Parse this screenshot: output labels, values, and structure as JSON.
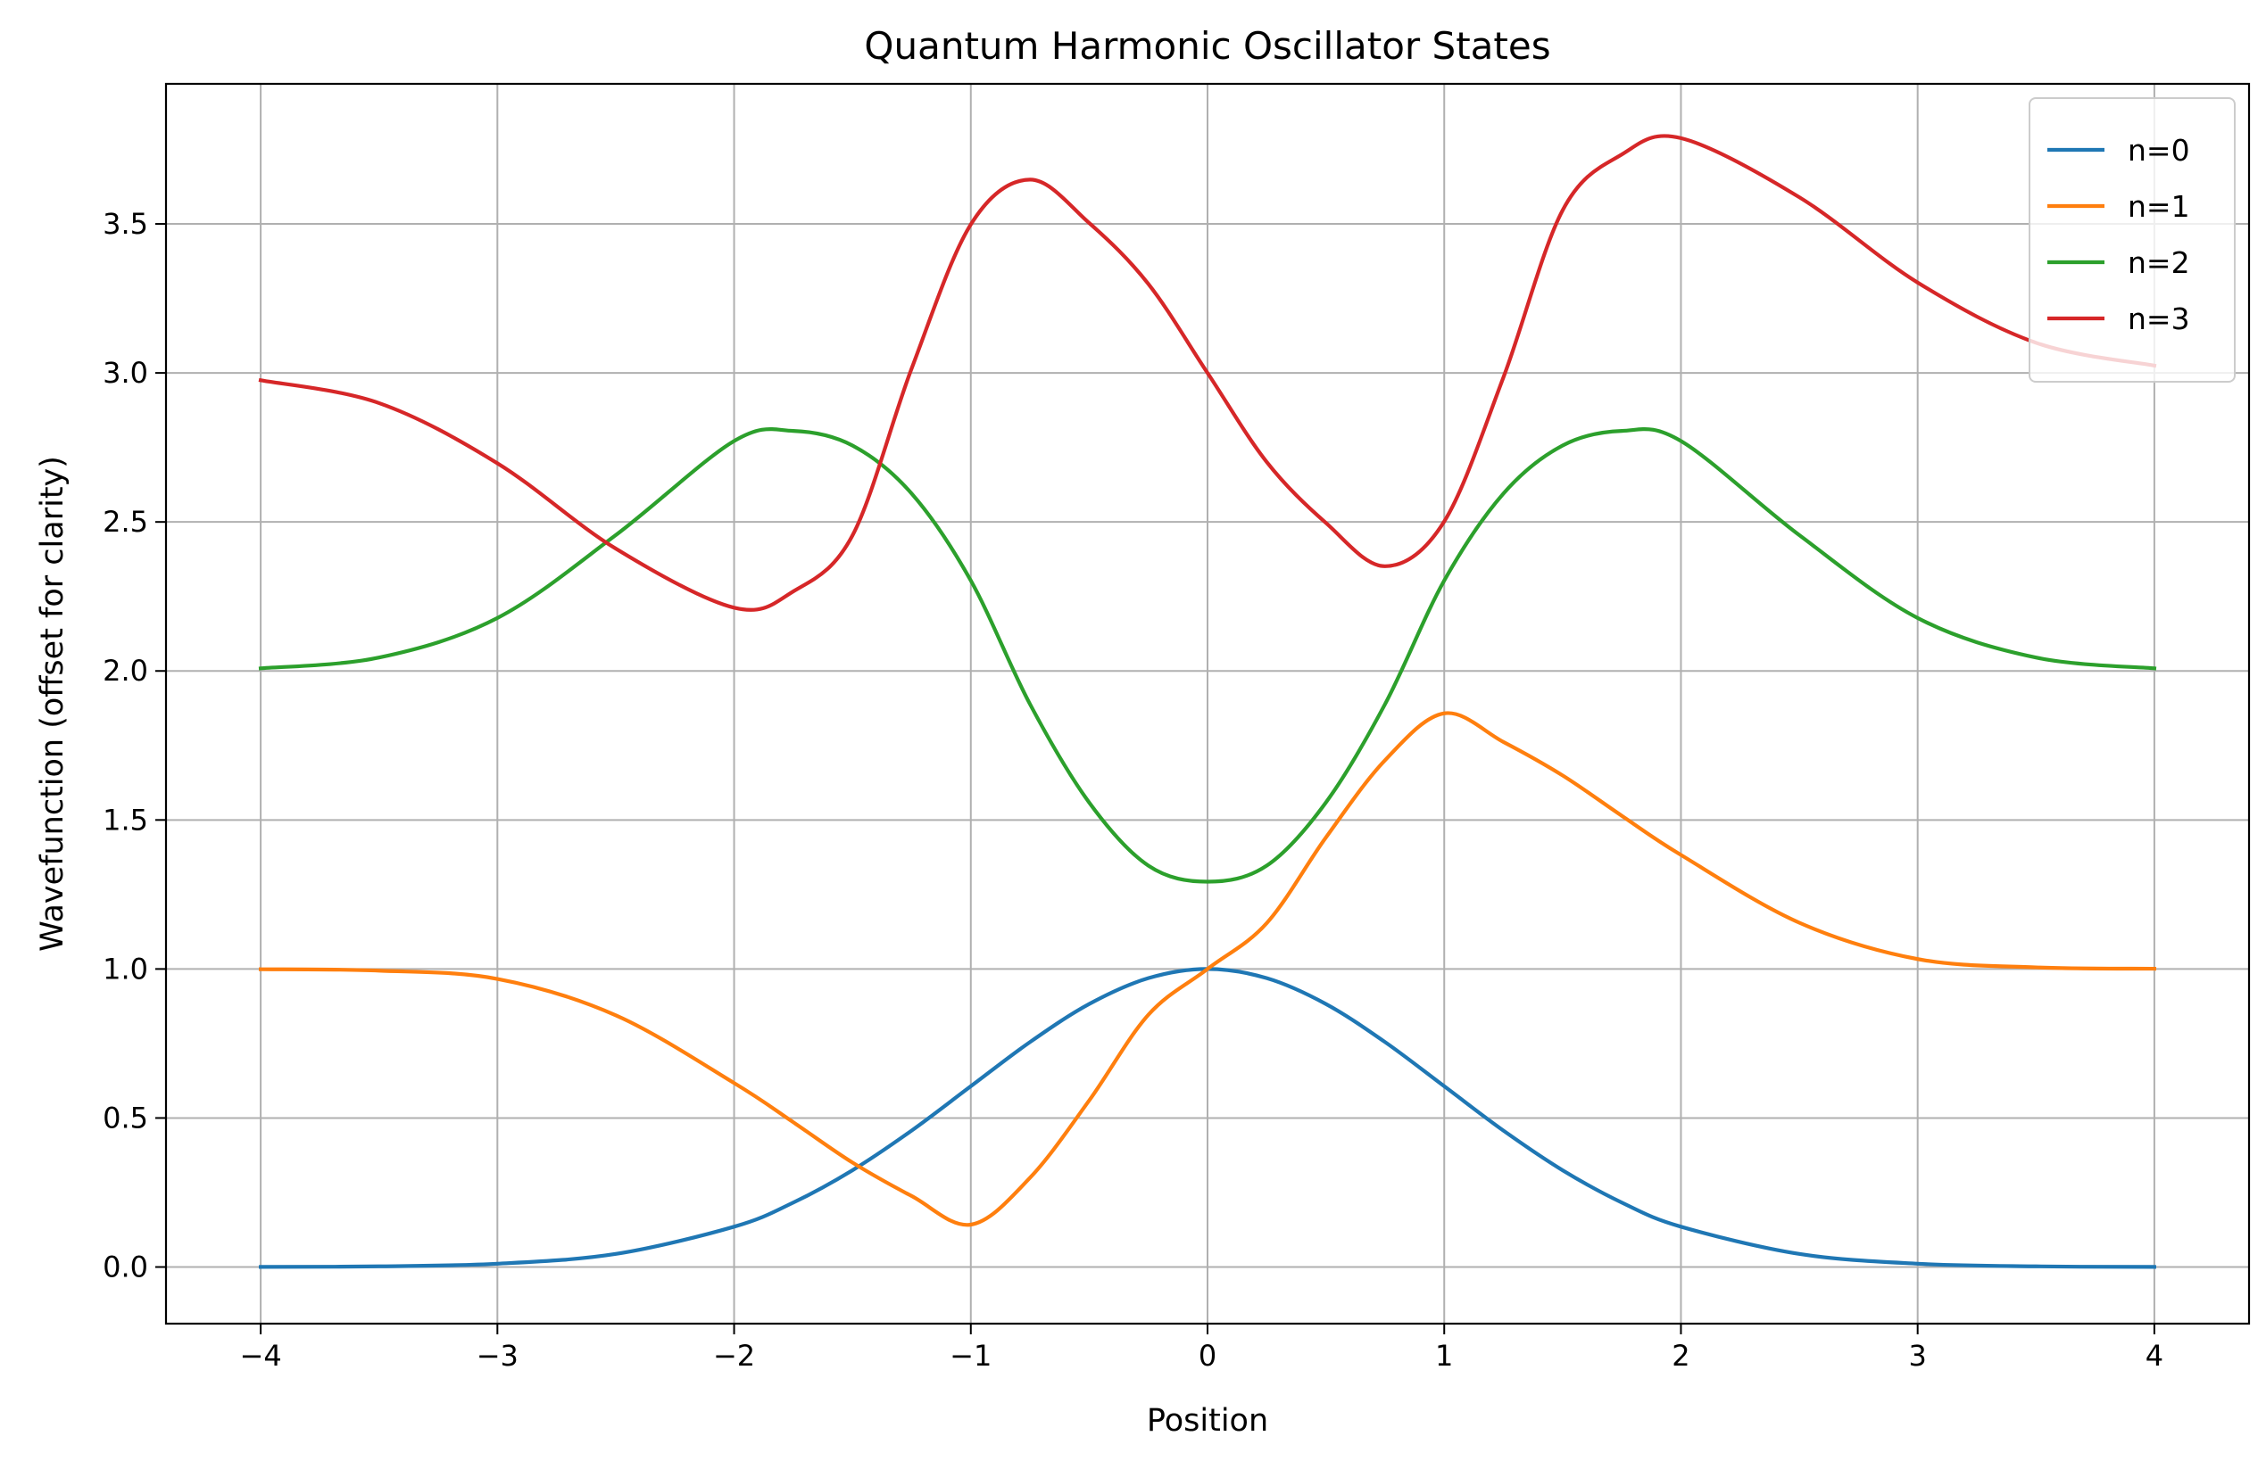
{
  "chart_data": {
    "type": "line",
    "title": "Quantum Harmonic Oscillator States",
    "xlabel": "Position",
    "ylabel": "Wavefunction (offset for clarity)",
    "xlim": [
      -4.4,
      4.4
    ],
    "ylim": [
      -0.19,
      3.97
    ],
    "xticks": [
      -4,
      -3,
      -2,
      -1,
      0,
      1,
      2,
      3,
      4
    ],
    "xtick_labels": [
      "−4",
      "−3",
      "−2",
      "−1",
      "0",
      "1",
      "2",
      "3",
      "4"
    ],
    "yticks": [
      0.0,
      0.5,
      1.0,
      1.5,
      2.0,
      2.5,
      3.0,
      3.5
    ],
    "ytick_labels": [
      "0.0",
      "0.5",
      "1.0",
      "1.5",
      "2.0",
      "2.5",
      "3.0",
      "3.5"
    ],
    "grid": true,
    "legend_position": "top-right",
    "x": [
      -4.0,
      -3.5,
      -3.0,
      -2.5,
      -2.0,
      -1.75,
      -1.5,
      -1.25,
      -1.0,
      -0.75,
      -0.5,
      -0.25,
      0.0,
      0.25,
      0.5,
      0.75,
      1.0,
      1.25,
      1.5,
      1.75,
      2.0,
      2.5,
      3.0,
      3.5,
      4.0
    ],
    "series": [
      {
        "name": "n=0",
        "color": "#1f77b4",
        "values": [
          0.0003,
          0.0022,
          0.0111,
          0.0439,
          0.1353,
          0.2163,
          0.3247,
          0.4578,
          0.6065,
          0.7548,
          0.8825,
          0.9692,
          1.0,
          0.9692,
          0.8825,
          0.7548,
          0.6065,
          0.4578,
          0.3247,
          0.2163,
          0.1353,
          0.0439,
          0.0111,
          0.0022,
          0.0003
        ]
      },
      {
        "name": "n=1",
        "color": "#ff7f0e",
        "values": [
          0.9991,
          0.9945,
          0.9667,
          0.8447,
          0.6173,
          0.4858,
          0.3505,
          0.2382,
          0.1422,
          0.2995,
          0.5588,
          0.8462,
          1.0,
          1.1538,
          1.4412,
          1.7005,
          1.8578,
          1.7618,
          1.6495,
          1.5142,
          1.3827,
          1.1553,
          1.0333,
          1.0055,
          1.0009
        ]
      },
      {
        "name": "n=2",
        "color": "#2ca02c",
        "values": [
          2.0087,
          2.0451,
          2.1777,
          2.4557,
          2.7714,
          2.8055,
          2.7565,
          2.5952,
          2.3033,
          1.8887,
          1.5587,
          1.3468,
          1.2929,
          1.3468,
          1.5587,
          1.8887,
          2.3033,
          2.5952,
          2.7565,
          2.8055,
          2.7714,
          2.4557,
          2.1777,
          2.0451,
          2.0087
        ]
      },
      {
        "name": "n=3",
        "color": "#d62728",
        "values": [
          2.9754,
          2.8988,
          2.6968,
          2.4105,
          2.2122,
          2.2669,
          2.4545,
          3.0149,
          3.4982,
          3.6486,
          3.5031,
          3.2987,
          3.0,
          2.7013,
          2.4969,
          2.3514,
          2.5018,
          2.9851,
          3.5455,
          3.7331,
          3.7878,
          3.5895,
          3.3032,
          3.1012,
          3.0246
        ]
      }
    ]
  }
}
